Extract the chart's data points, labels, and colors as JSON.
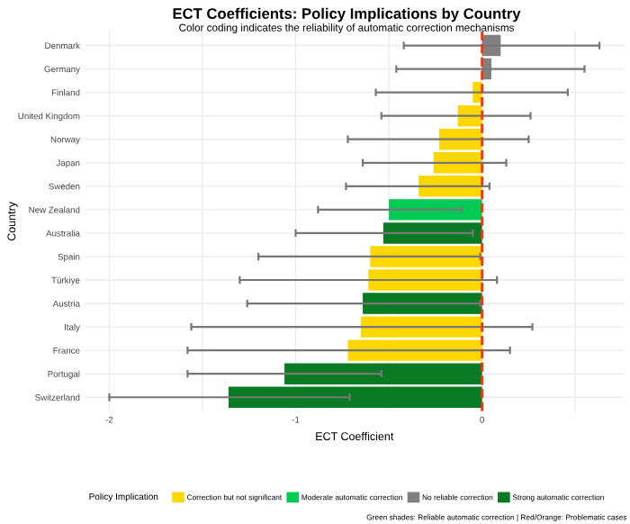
{
  "chart_data": {
    "type": "bar",
    "orientation": "horizontal",
    "title": "ECT Coefficients: Policy Implications by Country",
    "subtitle": "Color coding indicates the reliability of automatic correction mechanisms",
    "xlabel": "ECT Coefficient",
    "ylabel": "Country",
    "legend_title": "Policy Implication",
    "categories": [
      "Denmark",
      "Germany",
      "Finland",
      "United Kingdom",
      "Norway",
      "Japan",
      "Sweden",
      "New Zealand",
      "Australia",
      "Spain",
      "Türkiye",
      "Austria",
      "Italy",
      "France",
      "Portugal",
      "Switzerland"
    ],
    "series": [
      {
        "name": "Correction but not significant",
        "color": "#ffd700",
        "values": [
          null,
          null,
          -0.05,
          -0.13,
          -0.23,
          -0.26,
          -0.34,
          null,
          null,
          -0.6,
          -0.61,
          null,
          -0.65,
          -0.72,
          null,
          null
        ],
        "errors": [
          null,
          null,
          [
            -0.57,
            0.46
          ],
          [
            -0.54,
            0.26
          ],
          [
            -0.72,
            0.25
          ],
          [
            -0.64,
            0.13
          ],
          [
            -0.73,
            0.04
          ],
          null,
          null,
          [
            -1.2,
            -0.01
          ],
          [
            -1.3,
            0.08
          ],
          null,
          [
            -1.56,
            0.27
          ],
          [
            -1.58,
            0.15
          ],
          null,
          null
        ]
      },
      {
        "name": "Moderate automatic correction",
        "color": "#00cc55",
        "values": [
          null,
          null,
          null,
          null,
          null,
          null,
          null,
          -0.5,
          null,
          null,
          null,
          null,
          null,
          null,
          null,
          null
        ],
        "errors": [
          null,
          null,
          null,
          null,
          null,
          null,
          null,
          [
            -0.88,
            -0.11
          ],
          null,
          null,
          null,
          null,
          null,
          null,
          null,
          null
        ]
      },
      {
        "name": "No reliable correction",
        "color": "#808080",
        "values": [
          0.1,
          0.05,
          null,
          null,
          null,
          null,
          null,
          null,
          null,
          null,
          null,
          null,
          null,
          null,
          null,
          null
        ],
        "errors": [
          [
            -0.42,
            0.63
          ],
          [
            -0.46,
            0.55
          ],
          null,
          null,
          null,
          null,
          null,
          null,
          null,
          null,
          null,
          null,
          null,
          null,
          null,
          null
        ]
      },
      {
        "name": "Strong automatic correction",
        "color": "#0a7a25",
        "values": [
          null,
          null,
          null,
          null,
          null,
          null,
          null,
          null,
          -0.53,
          null,
          null,
          -0.64,
          null,
          null,
          -1.06,
          -1.36
        ],
        "errors": [
          null,
          null,
          null,
          null,
          null,
          null,
          null,
          null,
          [
            -1.0,
            -0.05
          ],
          null,
          null,
          [
            -1.26,
            -0.01
          ],
          null,
          null,
          [
            -1.58,
            -0.54
          ],
          [
            -2.0,
            -0.71
          ]
        ]
      }
    ],
    "xlim": [
      -2.13,
      0.76
    ],
    "xticks": [
      -2,
      {
        "value": -1.5,
        "label": null
      },
      -1,
      {
        "value": -0.5,
        "label": null
      },
      0,
      {
        "value": 0.5,
        "label": null
      }
    ],
    "ref_lines": [
      {
        "axis": "x",
        "value": 0,
        "color": "#ff3300",
        "line_style": "dashed"
      }
    ],
    "grid": true,
    "legend": "bottom",
    "annotations": [
      "Green shades: Reliable automatic correction | Red/Orange: Problematic cases"
    ]
  }
}
